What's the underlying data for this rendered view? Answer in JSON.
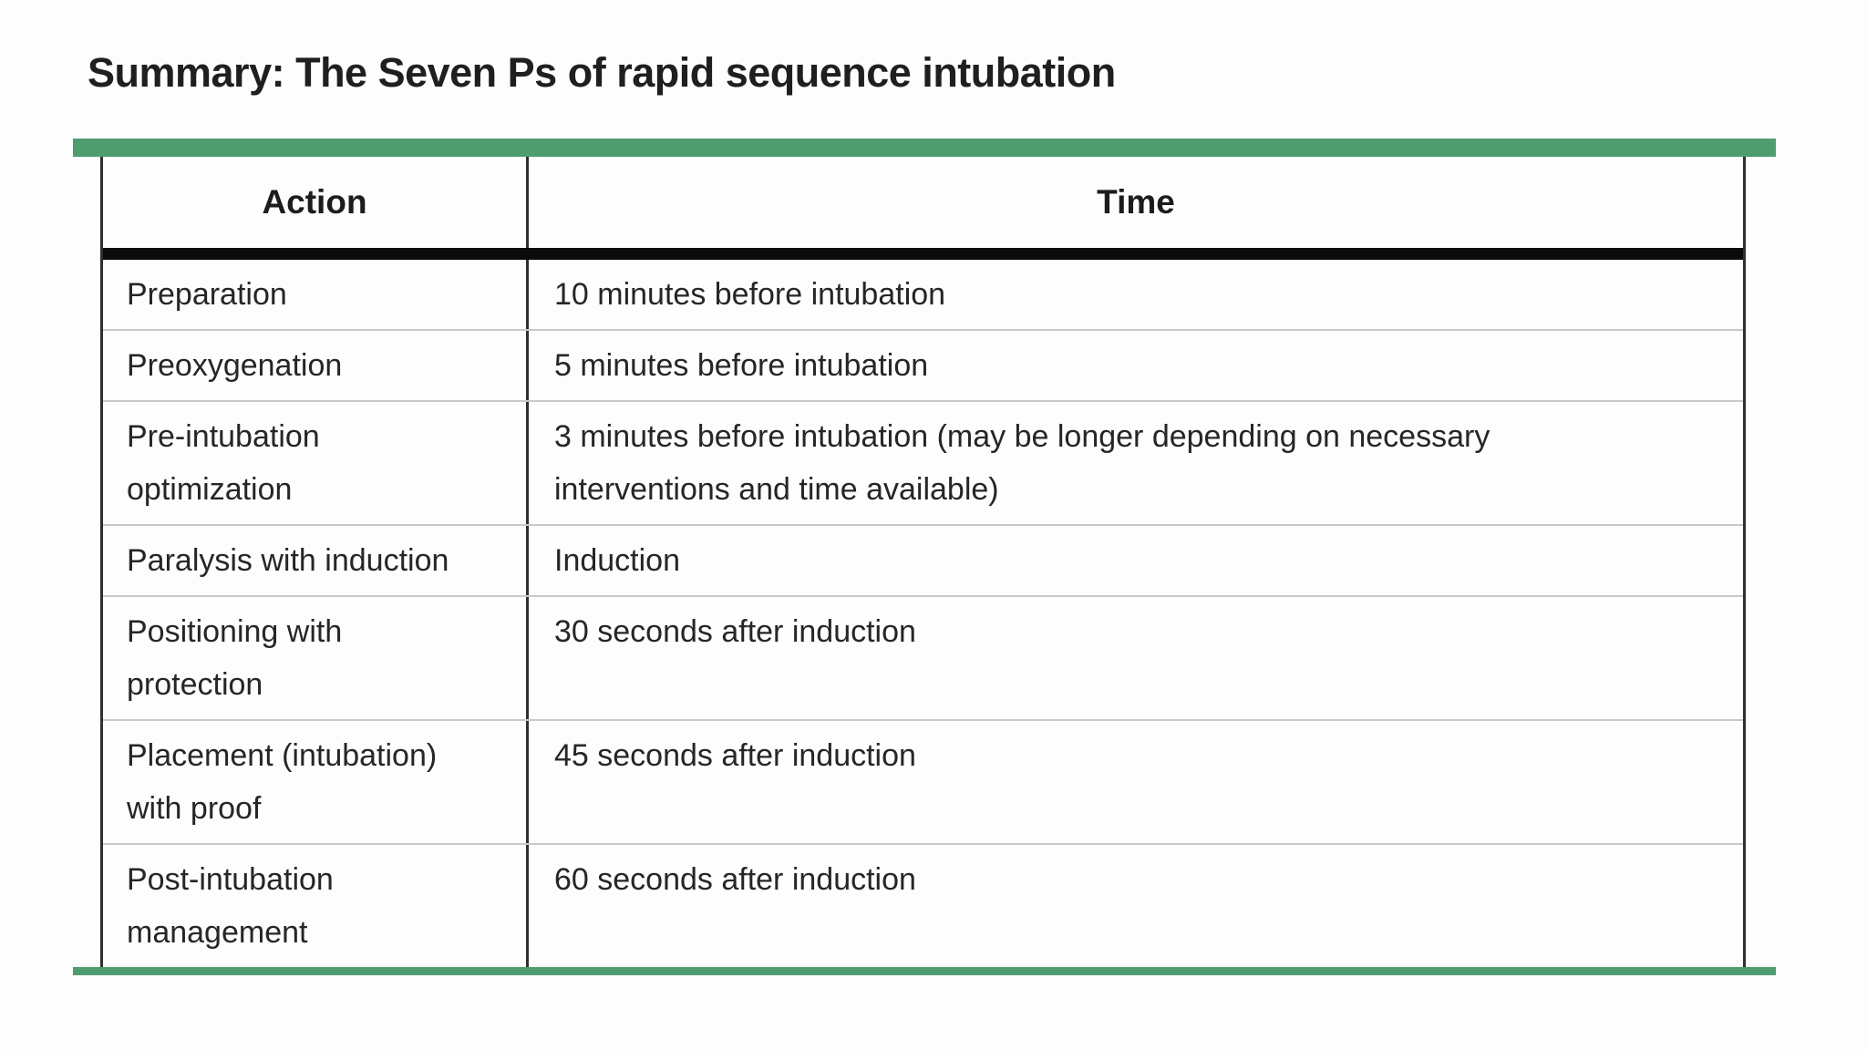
{
  "title": "Summary: The Seven Ps of rapid sequence intubation",
  "accent_color": "#4f9c70",
  "table": {
    "headers": [
      "Action",
      "Time"
    ],
    "rows": [
      {
        "action": "Preparation",
        "time": "10 minutes before intubation"
      },
      {
        "action": "Preoxygenation",
        "time": "5 minutes before intubation"
      },
      {
        "action": "Pre-intubation optimization",
        "time": "3 minutes before intubation (may be longer depending on necessary interventions and time available)"
      },
      {
        "action": "Paralysis with induction",
        "time": "Induction"
      },
      {
        "action": "Positioning with protection",
        "time": "30 seconds after induction"
      },
      {
        "action": "Placement (intubation) with proof",
        "time": "45 seconds after induction"
      },
      {
        "action": "Post-intubation management",
        "time": "60 seconds after induction"
      }
    ]
  }
}
